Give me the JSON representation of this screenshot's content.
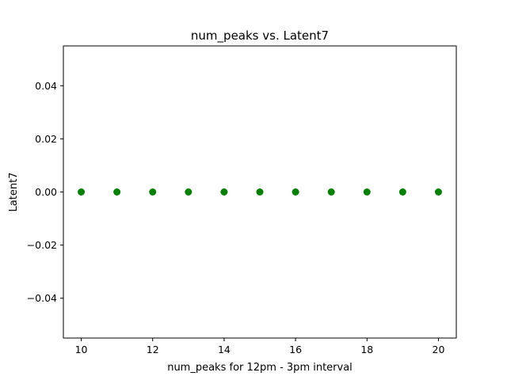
{
  "chart_data": {
    "type": "scatter",
    "title": "num_peaks vs. Latent7",
    "xlabel": "num_peaks for 12pm - 3pm interval",
    "ylabel": "Latent7",
    "xlim": [
      9.5,
      20.5
    ],
    "ylim": [
      -0.055,
      0.055
    ],
    "x_ticks": [
      10,
      12,
      14,
      16,
      18,
      20
    ],
    "x_tick_labels": [
      "10",
      "12",
      "14",
      "16",
      "18",
      "20"
    ],
    "y_ticks": [
      -0.04,
      -0.02,
      0.0,
      0.02,
      0.04
    ],
    "y_tick_labels": [
      "−0.04",
      "−0.02",
      "0.00",
      "0.02",
      "0.04"
    ],
    "grid": false,
    "marker_color": "#008000",
    "points": [
      {
        "x": 10,
        "y": 0.0
      },
      {
        "x": 11,
        "y": 0.0
      },
      {
        "x": 12,
        "y": 0.0
      },
      {
        "x": 13,
        "y": 0.0
      },
      {
        "x": 14,
        "y": 0.0
      },
      {
        "x": 15,
        "y": 0.0
      },
      {
        "x": 16,
        "y": 0.0
      },
      {
        "x": 17,
        "y": 0.0
      },
      {
        "x": 18,
        "y": 0.0
      },
      {
        "x": 19,
        "y": 0.0
      },
      {
        "x": 20,
        "y": 0.0
      }
    ]
  }
}
